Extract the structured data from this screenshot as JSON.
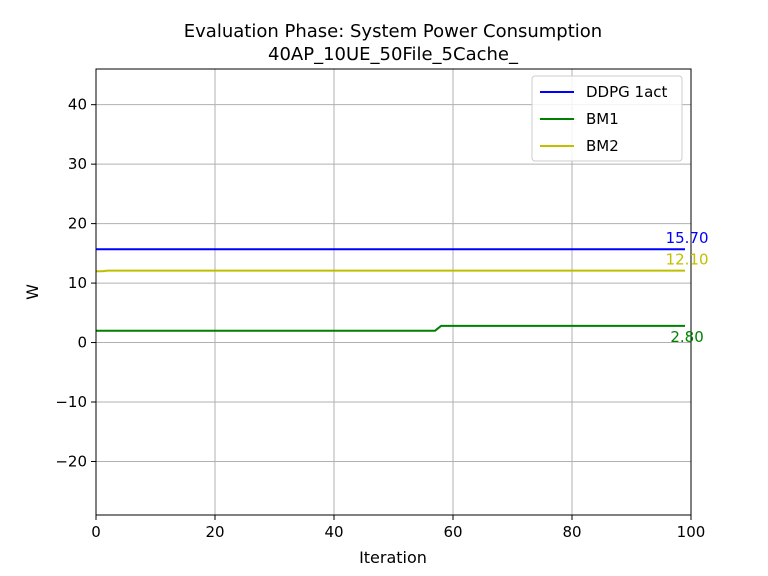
{
  "chart_data": {
    "type": "line",
    "title": "Evaluation Phase: System Power Consumption",
    "subtitle": "40AP_10UE_50File_5Cache_",
    "xlabel": "Iteration",
    "ylabel": "W",
    "xlim": [
      0,
      100
    ],
    "ylim": [
      -29,
      46
    ],
    "xticks": [
      0,
      20,
      40,
      60,
      80,
      100
    ],
    "yticks": [
      -20,
      -10,
      0,
      10,
      20,
      30,
      40
    ],
    "grid": true,
    "legend_position": "upper-right",
    "series": [
      {
        "name": "DDPG 1act",
        "color": "#0000ff",
        "x": [
          0,
          99
        ],
        "y": [
          15.7,
          15.7
        ],
        "end_label": "15.70"
      },
      {
        "name": "BM1",
        "color": "#008000",
        "x": [
          0,
          57,
          58,
          99
        ],
        "y": [
          2.0,
          2.0,
          2.8,
          2.8
        ],
        "end_label": "2.80"
      },
      {
        "name": "BM2",
        "color": "#bfbf00",
        "x": [
          0,
          1,
          2,
          99
        ],
        "y": [
          12.0,
          12.0,
          12.1,
          12.1
        ],
        "end_label": "12.10"
      }
    ]
  }
}
